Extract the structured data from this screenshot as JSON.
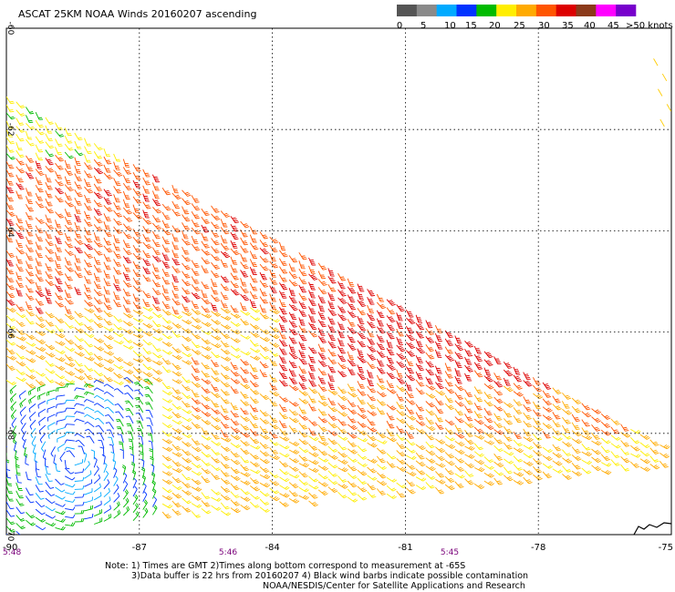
{
  "title": "ASCAT 25KM NOAA Winds 20160207 ascending",
  "legend": {
    "labels": [
      "0",
      "5",
      "10",
      "15",
      "20",
      "25",
      "30",
      "35",
      "40",
      "45",
      ">50 knots"
    ],
    "colors": [
      "#555555",
      "#8a8a8a",
      "#00aaff",
      "#0033ff",
      "#00bb00",
      "#ffee00",
      "#ffaa00",
      "#ff5500",
      "#dd0000",
      "#8b3a1a",
      "#ff00ff",
      "#7700cc"
    ]
  },
  "notes": {
    "line1": "Note: 1) Times are GMT 2)Times along bottom correspond to measurement at -65S",
    "line2": "3)Data buffer is 22 hrs from 20160207 4) Black wind barbs indicate possible contamination",
    "line3": "NOAA/NESDIS/Center for Satellite Applications and Research"
  },
  "chart_data": {
    "type": "scatter",
    "title": "ASCAT 25KM NOAA Winds 20160207 ascending",
    "xlabel": "",
    "ylabel": "",
    "xlim": [
      -90,
      -75
    ],
    "ylim": [
      -70,
      -60
    ],
    "x_ticks": [
      "-90",
      "-87",
      "-84",
      "-81",
      "-78",
      "-75"
    ],
    "x_tick_values": [
      -90,
      -87,
      -84,
      -81,
      -78,
      -75
    ],
    "y_ticks": [
      "-60",
      "-62",
      "-64",
      "-66",
      "-68",
      "-70"
    ],
    "y_tick_values": [
      -60,
      -62,
      -64,
      -66,
      -68,
      -70
    ],
    "time_labels": [
      {
        "lon": -90,
        "text": "5:48"
      },
      {
        "lon": -85,
        "text": "5:46"
      },
      {
        "lon": -80,
        "text": "5:45"
      }
    ],
    "grid": true,
    "swath": {
      "top_edge": [
        [
          -90,
          -61.3
        ],
        [
          -75,
          -68.3
        ]
      ],
      "bottom_edge": [
        [
          -90,
          -70
        ],
        [
          -75,
          -68.6
        ]
      ]
    },
    "wind_zones": [
      {
        "name": "north-edge",
        "lon": [
          -90,
          -86
        ],
        "lat": [
          -62.5,
          -61.3
        ],
        "speed_kt": 22,
        "dir_deg": 300
      },
      {
        "name": "core",
        "lon": [
          -90,
          -80
        ],
        "lat": [
          -65.5,
          -62.5
        ],
        "speed_kt": 33,
        "dir_deg": 300
      },
      {
        "name": "core-east",
        "lon": [
          -84,
          -76
        ],
        "lat": [
          -67,
          -65
        ],
        "speed_kt": 37,
        "dir_deg": 300
      },
      {
        "name": "southern-belt",
        "lon": [
          -86,
          -76
        ],
        "lat": [
          -68,
          -66.5
        ],
        "speed_kt": 30,
        "dir_deg": 310
      },
      {
        "name": "south-edge",
        "lon": [
          -86,
          -75
        ],
        "lat": [
          -70,
          -68
        ],
        "speed_kt": 26,
        "dir_deg": 320
      },
      {
        "name": "cyclone-center",
        "lon": [
          -89.5,
          -87.5
        ],
        "lat": [
          -69.5,
          -67.3
        ],
        "speed_kt": 11,
        "dir_deg": 90
      },
      {
        "name": "cyclone-ring",
        "lon": [
          -90,
          -86.5
        ],
        "lat": [
          -70,
          -67
        ],
        "speed_kt": 16,
        "dir_deg": 60
      }
    ]
  }
}
